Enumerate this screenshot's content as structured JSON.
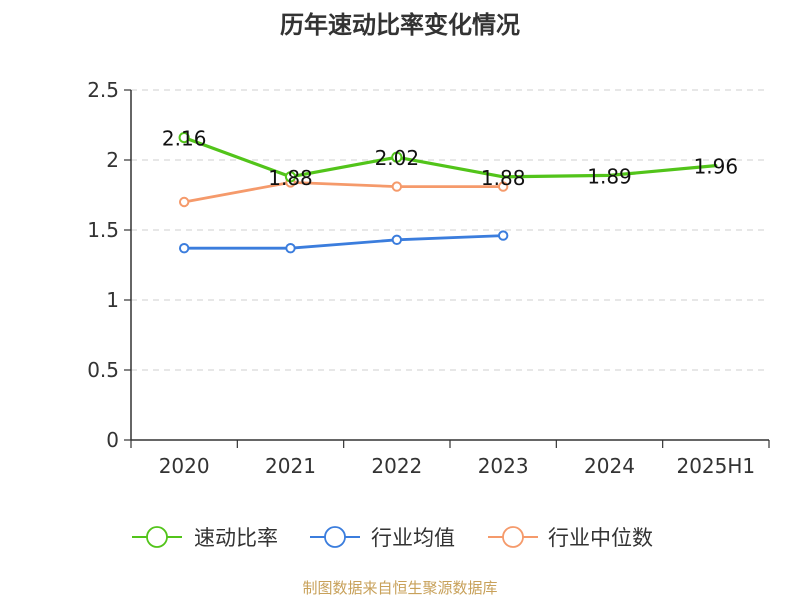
{
  "chart_data": {
    "type": "line",
    "title": "历年速动比率变化情况",
    "categories": [
      "2020",
      "2021",
      "2022",
      "2023",
      "2024",
      "2025H1"
    ],
    "y_ticks": [
      "0",
      "0.5",
      "1",
      "1.5",
      "2",
      "2.5"
    ],
    "ylim": [
      0,
      2.5
    ],
    "grid": true,
    "legend_position": "bottom",
    "series": [
      {
        "name": "速动比率",
        "color": "#52c41a",
        "values": [
          2.16,
          1.88,
          2.02,
          1.88,
          1.89,
          1.96
        ],
        "labels": [
          "2.16",
          "1.88",
          "2.02",
          "1.88",
          "1.89",
          "1.96"
        ],
        "show_labels": true
      },
      {
        "name": "行业均值",
        "color": "#3b7ddd",
        "values": [
          1.37,
          1.37,
          1.43,
          1.46,
          null,
          null
        ],
        "labels": [
          "",
          "",
          "",
          "",
          "",
          ""
        ],
        "show_labels": false
      },
      {
        "name": "行业中位数",
        "color": "#f59a6b",
        "values": [
          1.7,
          1.84,
          1.81,
          1.81,
          null,
          null
        ],
        "labels": [
          "",
          "",
          "",
          "",
          "",
          ""
        ],
        "show_labels": false
      }
    ],
    "source": "制图数据来自恒生聚源数据库"
  }
}
